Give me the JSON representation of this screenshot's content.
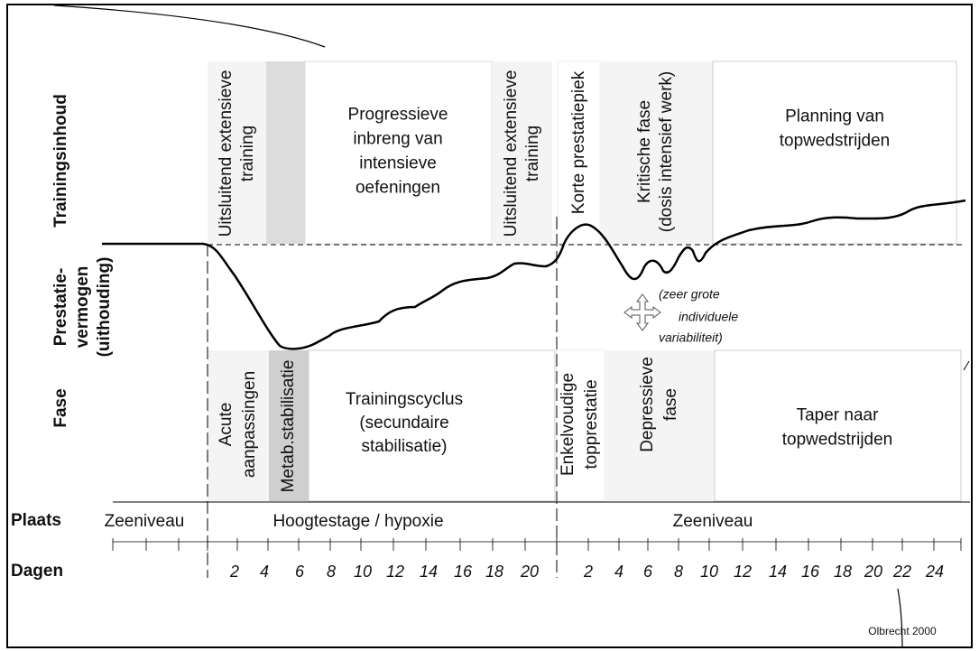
{
  "row_labels": {
    "trainingsinhoud": "Trainingsinhoud",
    "prestatievermogen": [
      "Prestatie-",
      "vermogen",
      "(uithouding)"
    ],
    "fase": "Fase",
    "plaats": "Plaats",
    "dagen": "Dagen"
  },
  "training_content": [
    [
      "Uitsluitend extensieve",
      "training"
    ],
    [
      "Progressieve",
      "inbreng van",
      "intensieve",
      "oefeningen"
    ],
    [
      "Uitsluitend extensieve",
      "training"
    ],
    [
      "Korte prestatiepiek"
    ],
    [
      "Kritische fase",
      "(dosis intensief werk)"
    ],
    [
      "Planning van",
      "topwedstrijden"
    ]
  ],
  "annotation": [
    "(zeer grote",
    "individuele",
    "variabiliteit)"
  ],
  "phases": [
    [
      "Acute",
      "aanpassingen"
    ],
    [
      "Metab.stabilisatie"
    ],
    [
      "Trainingscyclus",
      "(secundaire",
      "stabilisatie)"
    ],
    [
      "Enkelvoudige",
      "topprestatie"
    ],
    [
      "Depressieve",
      "fase"
    ],
    [
      "Taper naar",
      "topwedstrijden"
    ]
  ],
  "places": [
    "Zeeniveau",
    "Hoogtestage / hypoxie",
    "Zeeniveau"
  ],
  "days": {
    "altitude": [
      2,
      4,
      6,
      8,
      10,
      12,
      14,
      16,
      18,
      20
    ],
    "sea_level": [
      2,
      4,
      6,
      8,
      10,
      12,
      14,
      16,
      18,
      20,
      22,
      24
    ]
  },
  "credit": "Olbrecht 2000"
}
